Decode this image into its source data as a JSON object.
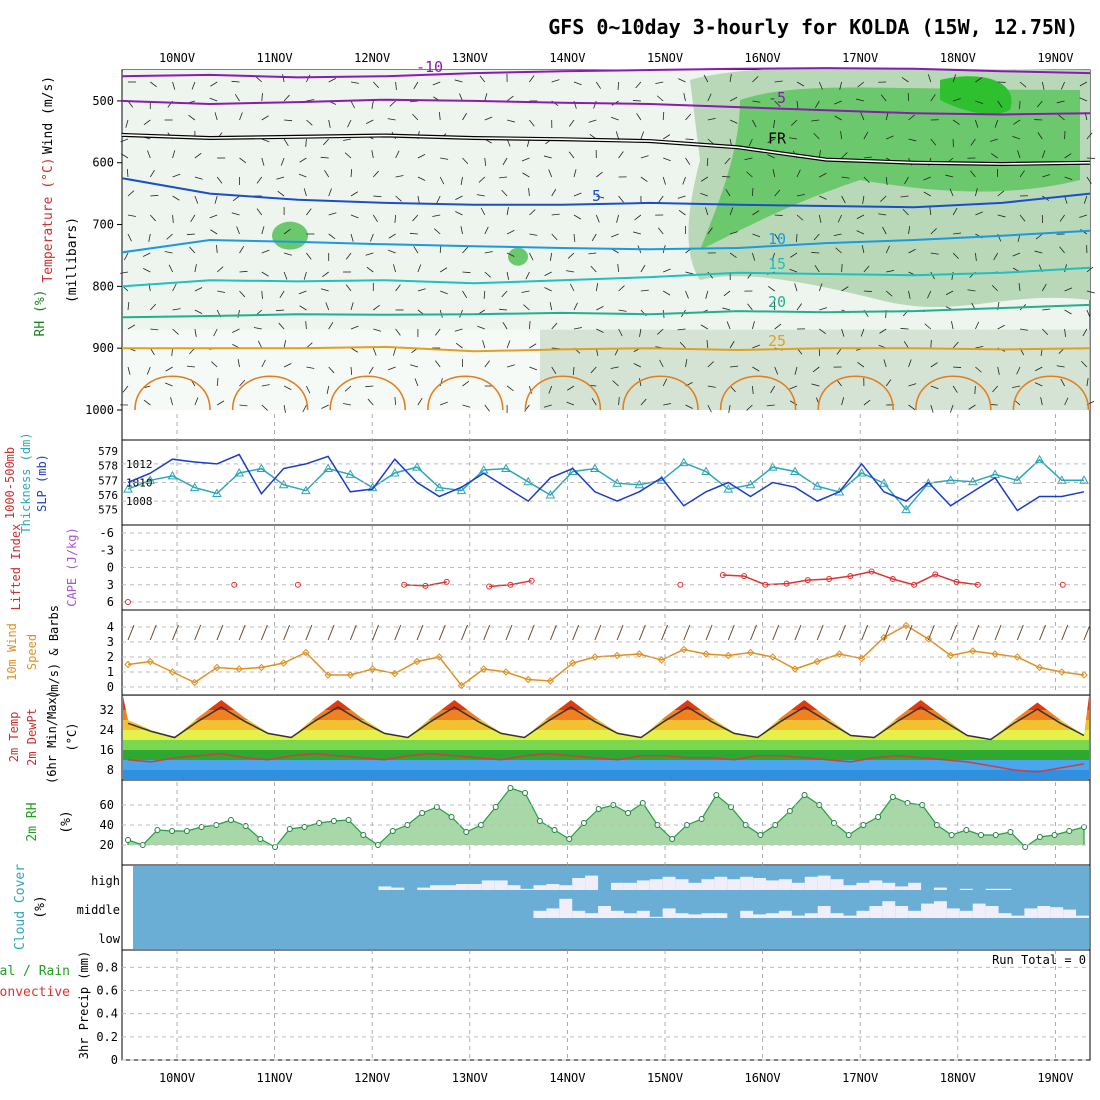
{
  "title": "GFS 0~10day 3-hourly for KOLDA (15W, 12.75N)",
  "date_labels": [
    "10NOV",
    "11NOV",
    "12NOV",
    "13NOV",
    "14NOV",
    "15NOV",
    "16NOV",
    "17NOV",
    "18NOV",
    "19NOV"
  ],
  "panel_labels": {
    "upper": [
      "Wind (m/s)",
      "Temperature (°C)",
      "RH (%)",
      "(millibars)"
    ],
    "thick": [
      "1000-500mb",
      "Thickness (dm)",
      "SLP (mb)"
    ],
    "cape": [
      "Lifted Index",
      "CAPE (J/kg)"
    ],
    "wind10": [
      "10m Wind",
      "Speed",
      "(m/s) & Barbs"
    ],
    "temp2m": [
      "2m Temp",
      "2m DewPt",
      "(6hr Min/Max)",
      "(°C)"
    ],
    "rh2m": [
      "2m RH",
      "(%)"
    ],
    "cloud": [
      "Cloud Cover",
      "(%)"
    ],
    "precip": [
      "Total / Rain",
      "Convective",
      "3hr Precip (mm)"
    ]
  },
  "run_total": "Run Total = 0",
  "chart_data": [
    {
      "type": "heatmap",
      "panel": "upper-air",
      "ylabel": "millibars",
      "y_ticks": [
        500,
        600,
        700,
        800,
        900,
        1000
      ],
      "ylim": [
        1000,
        450
      ],
      "temperature_contours": [
        {
          "label": "-10",
          "color": "#8a1ab0",
          "mb": [
            460,
            458,
            462,
            460,
            455,
            452,
            450,
            448,
            447,
            448,
            452,
            455
          ]
        },
        {
          "label": "-5",
          "color": "#8a1ab0",
          "mb": [
            500,
            505,
            502,
            498,
            500,
            503,
            505,
            510,
            515,
            520,
            522,
            520
          ]
        },
        {
          "label": "FR",
          "color": "#000000",
          "mb": [
            555,
            560,
            558,
            556,
            560,
            562,
            565,
            575,
            595,
            600,
            602,
            600
          ]
        },
        {
          "label": "5",
          "color": "#1a4fc8",
          "mb": [
            625,
            650,
            660,
            665,
            668,
            668,
            665,
            668,
            670,
            672,
            665,
            650
          ]
        },
        {
          "label": "10",
          "color": "#1a9ae0",
          "mb": [
            745,
            725,
            728,
            732,
            735,
            738,
            740,
            738,
            730,
            725,
            718,
            710
          ]
        },
        {
          "label": "15",
          "color": "#20c0c0",
          "mb": [
            800,
            790,
            792,
            790,
            795,
            790,
            785,
            778,
            780,
            782,
            778,
            770
          ]
        },
        {
          "label": "20",
          "color": "#20b090",
          "mb": [
            850,
            848,
            845,
            846,
            845,
            843,
            845,
            840,
            842,
            840,
            835,
            830
          ]
        },
        {
          "label": "25",
          "color": "#e0a020",
          "mb": [
            900,
            900,
            900,
            898,
            905,
            902,
            900,
            903,
            900,
            900,
            902,
            900
          ]
        }
      ]
    },
    {
      "type": "line",
      "panel": "thickness-slp",
      "series": [
        {
          "name": "1000-500mb Thickness (dm)",
          "color": "#2aa8b8",
          "marker": "triangle",
          "values": [
            576.4,
            577.0,
            577.3,
            576.5,
            576.1,
            577.5,
            577.8,
            576.7,
            576.3,
            577.8,
            577.4,
            576.5,
            577.5,
            577.9,
            576.5,
            576.3,
            577.7,
            577.8,
            576.9,
            576.0,
            577.6,
            577.8,
            576.8,
            576.7,
            577.0,
            578.2,
            577.6,
            576.4,
            576.7,
            577.9,
            577.6,
            576.6,
            576.2,
            577.5,
            576.8,
            575.0,
            576.8,
            577.0,
            576.9,
            577.4,
            577.0,
            578.4,
            577.0,
            577.0
          ]
        },
        {
          "name": "SLP (mb)",
          "color": "#1a3ccc",
          "values": [
            1010.0,
            1011.0,
            1012.5,
            1012.2,
            1012.0,
            1013.0,
            1008.8,
            1011.5,
            1012.0,
            1012.8,
            1009.0,
            1009.3,
            1012.5,
            1010.0,
            1008.5,
            1009.5,
            1011.0,
            1009.5,
            1008.0,
            1010.5,
            1011.5,
            1009.0,
            1008.0,
            1009.0,
            1010.5,
            1007.5,
            1009.0,
            1010.0,
            1008.5,
            1010.0,
            1009.5,
            1008.0,
            1009.0,
            1012.0,
            1009.0,
            1008.0,
            1010.0,
            1007.5,
            1009.0,
            1010.5,
            1007.0,
            1008.5,
            1008.5,
            1009.0
          ]
        }
      ],
      "left_ticks": [
        575,
        576,
        577,
        578,
        579
      ],
      "right_ticks": [
        1008,
        1010,
        1012
      ]
    },
    {
      "type": "line",
      "panel": "cape-lifted-index",
      "y_ticks": [
        -6,
        -3,
        0,
        3,
        6
      ],
      "series": [
        {
          "name": "Lifted Index",
          "color": "#e03030",
          "values": [
            6.0,
            null,
            null,
            null,
            null,
            3.0,
            null,
            null,
            3.0,
            null,
            null,
            null,
            null,
            3.0,
            3.2,
            2.5,
            null,
            3.3,
            3.0,
            2.3,
            null,
            null,
            null,
            null,
            null,
            null,
            3.0,
            null,
            1.3,
            1.5,
            3.0,
            2.8,
            2.2,
            2.0,
            1.5,
            0.7,
            2.0,
            3.0,
            1.2,
            2.5,
            3.0,
            null,
            null,
            null,
            3.0,
            null
          ]
        }
      ]
    },
    {
      "type": "line",
      "panel": "wind-10m",
      "y_ticks": [
        0,
        1,
        2,
        3,
        4
      ],
      "series": [
        {
          "name": "10m Wind Speed (m/s)",
          "color": "#e09020",
          "values": [
            1.5,
            1.7,
            1.0,
            0.3,
            1.3,
            1.2,
            1.3,
            1.6,
            2.3,
            0.8,
            0.8,
            1.2,
            0.9,
            1.7,
            2.0,
            0.1,
            1.2,
            1.0,
            0.5,
            0.4,
            1.6,
            2.0,
            2.1,
            2.2,
            1.8,
            2.5,
            2.2,
            2.1,
            2.3,
            2.0,
            1.2,
            1.7,
            2.2,
            1.9,
            3.3,
            4.1,
            3.2,
            2.1,
            2.4,
            2.2,
            2.0,
            1.3,
            1.0,
            0.8
          ]
        }
      ]
    },
    {
      "type": "area",
      "panel": "temp-2m",
      "y_ticks": [
        8,
        16,
        24,
        32
      ],
      "series": [
        {
          "name": "2m Temp (°C)",
          "color": "#333333",
          "values": [
            28,
            24,
            21,
            29,
            36,
            29,
            23,
            21,
            29,
            36,
            29,
            23,
            21,
            29,
            36,
            29,
            23,
            21,
            29,
            36,
            29,
            23,
            21,
            29,
            36,
            29,
            23,
            21,
            29,
            36,
            29,
            22,
            21,
            29,
            36,
            29,
            22,
            20,
            28,
            35,
            28,
            22
          ]
        },
        {
          "name": "2m DewPt (°C)",
          "color": "#cc4040",
          "values": [
            10,
            9,
            11,
            12,
            13,
            11,
            10,
            12,
            13,
            12,
            11,
            10,
            12,
            13,
            12,
            11,
            10,
            12,
            13,
            12,
            11,
            10,
            12,
            12,
            11,
            11,
            10,
            12,
            12,
            11,
            10,
            9,
            11,
            12,
            11,
            10,
            9,
            7,
            5,
            4,
            6,
            8
          ]
        }
      ]
    },
    {
      "type": "area",
      "panel": "rh-2m",
      "y_ticks": [
        20,
        40,
        60
      ],
      "series": [
        {
          "name": "2m RH (%)",
          "color": "#20a040",
          "values": [
            25,
            20,
            35,
            34,
            34,
            38,
            40,
            45,
            39,
            26,
            18,
            36,
            38,
            42,
            44,
            45,
            30,
            20,
            34,
            40,
            52,
            58,
            48,
            33,
            40,
            58,
            77,
            72,
            44,
            35,
            26,
            42,
            56,
            60,
            52,
            62,
            40,
            26,
            40,
            46,
            70,
            58,
            40,
            30,
            40,
            54,
            70,
            60,
            42,
            30,
            40,
            48,
            68,
            62,
            60,
            40,
            30,
            35,
            30,
            30,
            33,
            18,
            28,
            30,
            34,
            38
          ]
        }
      ]
    },
    {
      "type": "heatmap",
      "panel": "cloud-cover",
      "rows": [
        "high",
        "middle",
        "low"
      ],
      "note": "fraction of each 3-hour step that is cloud-free, per level",
      "high": [
        0,
        0,
        0,
        0,
        0,
        0,
        0,
        0,
        0,
        0,
        0,
        0,
        0,
        0,
        0,
        0,
        0,
        0,
        0,
        0.15,
        0.1,
        0,
        0.1,
        0.2,
        0.2,
        0.25,
        0.25,
        0.4,
        0.4,
        0.2,
        0.05,
        0.2,
        0.25,
        0.2,
        0.5,
        0.6,
        0,
        0.3,
        0.3,
        0.4,
        0.45,
        0.55,
        0.45,
        0.3,
        0.45,
        0.55,
        0.45,
        0.55,
        0.5,
        0.4,
        0.45,
        0.3,
        0.55,
        0.6,
        0.45,
        0.2,
        0.3,
        0.4,
        0.3,
        0.15,
        0.3,
        0,
        0.1,
        0,
        0.05,
        0,
        0.05,
        0.05,
        0,
        0,
        0,
        0,
        0,
        0
      ],
      "middle": [
        0,
        0,
        0,
        0,
        0,
        0,
        0,
        0,
        0,
        0,
        0,
        0,
        0,
        0,
        0,
        0,
        0,
        0,
        0,
        0,
        0,
        0,
        0,
        0,
        0,
        0,
        0,
        0,
        0,
        0,
        0,
        0.3,
        0.4,
        0.8,
        0.3,
        0.2,
        0.5,
        0.3,
        0.2,
        0.3,
        0.05,
        0.4,
        0.2,
        0.15,
        0.2,
        0.2,
        0,
        0.3,
        0.15,
        0.2,
        0.3,
        0.1,
        0.2,
        0.5,
        0.2,
        0.1,
        0.3,
        0.5,
        0.7,
        0.5,
        0.3,
        0.6,
        0.7,
        0.4,
        0.3,
        0.6,
        0.5,
        0.2,
        0.1,
        0.4,
        0.5,
        0.45,
        0.35,
        0.1
      ]
    },
    {
      "type": "line",
      "panel": "precip-3hr",
      "y_ticks": [
        0,
        0.2,
        0.4,
        0.6,
        0.8
      ],
      "series": [
        {
          "name": "3hr Precip (mm)",
          "color": "#20a020",
          "values": [
            0,
            0,
            0,
            0,
            0,
            0,
            0,
            0,
            0,
            0
          ]
        }
      ]
    }
  ]
}
